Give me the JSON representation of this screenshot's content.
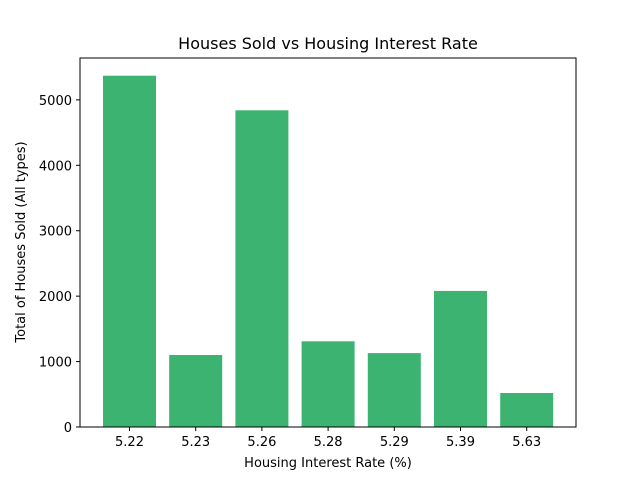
{
  "chart_data": {
    "type": "bar",
    "title": "Houses Sold vs Housing Interest Rate",
    "xlabel": "Housing Interest Rate (%)",
    "ylabel": "Total of Houses Sold (All types)",
    "categories": [
      "5.22",
      "5.23",
      "5.26",
      "5.28",
      "5.29",
      "5.39",
      "5.63"
    ],
    "values": [
      5370,
      1100,
      4840,
      1310,
      1130,
      2080,
      520
    ],
    "ylim": [
      0,
      5640
    ],
    "yticks": [
      0,
      1000,
      2000,
      3000,
      4000,
      5000
    ],
    "ytick_labels": [
      "0",
      "1000",
      "2000",
      "3000",
      "4000",
      "5000"
    ],
    "bar_color": "#3cb371",
    "grid": false,
    "legend": "none"
  }
}
